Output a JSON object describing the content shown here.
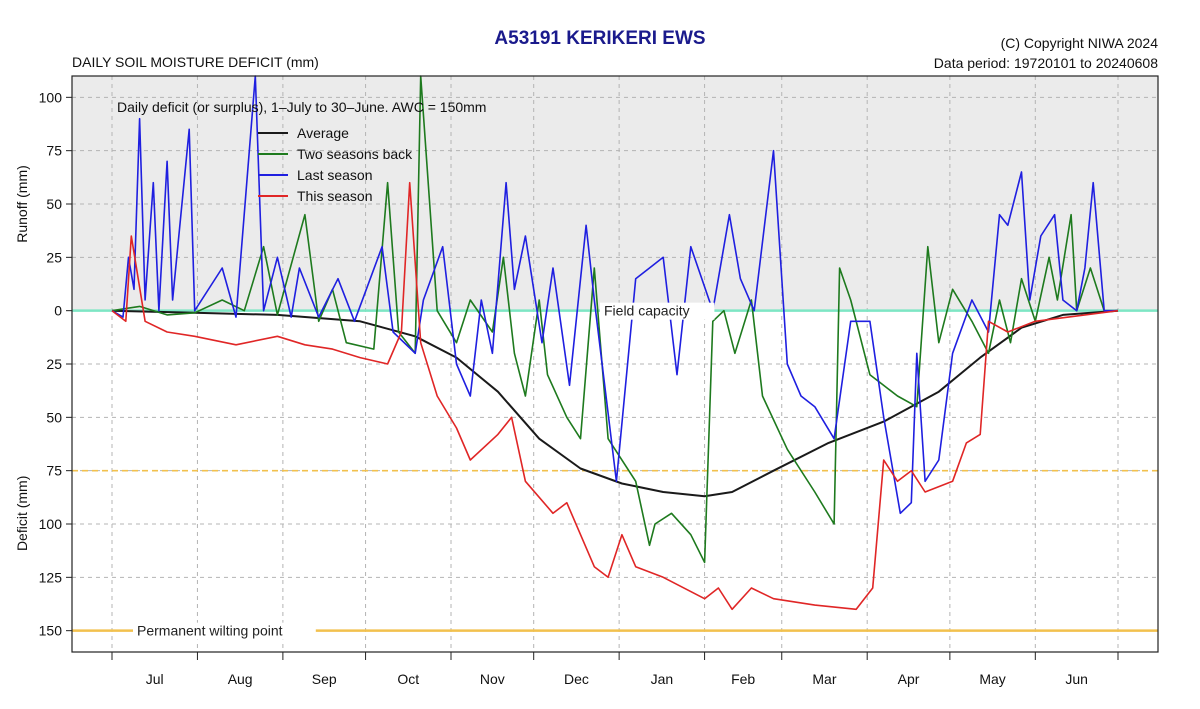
{
  "header": {
    "title": "A53191  KERIKERI EWS",
    "subtitle": "DAILY SOIL MOISTURE DEFICIT (mm)",
    "copyright": "(C) Copyright NIWA  2024",
    "data_period": "Data period:  19720101  to  20240608"
  },
  "colors": {
    "title": "#1a1a8c",
    "runoff_bg": "#ebebeb",
    "grid": "#b4b4b4",
    "field_capacity": "#7ee6c4",
    "threshold": "#f2c14e",
    "average": "#1a1a1a",
    "two_seasons_back": "#1e7a1e",
    "last_season": "#1f1fe0",
    "this_season": "#e02626"
  },
  "chart_data": {
    "type": "line",
    "legend_title": "Daily deficit (or surplus), 1–July to 30–June.  AWC = 150mm",
    "legend_placement": "top-left",
    "xlabel": "",
    "ylabel_top": "Runoff (mm)",
    "ylabel_bottom": "Deficit (mm)",
    "x_unit": "day of season (0 = 1 July)",
    "xlim": [
      0,
      365
    ],
    "ylim": [
      -110,
      160
    ],
    "grid": true,
    "month_ticks": [
      0,
      31,
      62,
      92,
      123,
      153,
      184,
      215,
      243,
      274,
      304,
      335,
      365
    ],
    "month_labels": [
      "Jul",
      "Aug",
      "Sep",
      "Oct",
      "Nov",
      "Dec",
      "Jan",
      "Feb",
      "Mar",
      "Apr",
      "May",
      "Jun"
    ],
    "y_ticks": [
      -100,
      -75,
      -50,
      -25,
      0,
      25,
      50,
      75,
      100,
      125,
      150
    ],
    "y_tick_labels": [
      "100",
      "75",
      "50",
      "25",
      "0",
      "25",
      "50",
      "75",
      "100",
      "125",
      "150"
    ],
    "reference_lines": [
      {
        "label": "Field capacity",
        "y": 0
      },
      {
        "label": "",
        "y": 75
      },
      {
        "label": "Permanent wilting point",
        "y": 150
      }
    ],
    "series": [
      {
        "name": "Average",
        "key": "average",
        "points": [
          [
            0,
            0
          ],
          [
            30,
            1
          ],
          [
            60,
            2
          ],
          [
            90,
            5
          ],
          [
            110,
            12
          ],
          [
            125,
            22
          ],
          [
            140,
            38
          ],
          [
            155,
            60
          ],
          [
            170,
            74
          ],
          [
            185,
            81
          ],
          [
            200,
            85
          ],
          [
            215,
            87
          ],
          [
            225,
            85
          ],
          [
            240,
            75
          ],
          [
            260,
            62
          ],
          [
            280,
            52
          ],
          [
            300,
            38
          ],
          [
            315,
            22
          ],
          [
            330,
            8
          ],
          [
            345,
            2
          ],
          [
            365,
            0
          ]
        ]
      },
      {
        "name": "Two seasons back",
        "key": "two_seasons_back",
        "points": [
          [
            0,
            0
          ],
          [
            10,
            -2
          ],
          [
            20,
            2
          ],
          [
            30,
            1
          ],
          [
            40,
            -5
          ],
          [
            48,
            0
          ],
          [
            55,
            -30
          ],
          [
            60,
            2
          ],
          [
            70,
            -45
          ],
          [
            75,
            5
          ],
          [
            80,
            -10
          ],
          [
            85,
            15
          ],
          [
            95,
            18
          ],
          [
            100,
            -60
          ],
          [
            104,
            10
          ],
          [
            110,
            20
          ],
          [
            112,
            -110
          ],
          [
            118,
            0
          ],
          [
            125,
            15
          ],
          [
            130,
            -5
          ],
          [
            138,
            10
          ],
          [
            142,
            -25
          ],
          [
            146,
            20
          ],
          [
            150,
            40
          ],
          [
            155,
            -5
          ],
          [
            158,
            30
          ],
          [
            165,
            50
          ],
          [
            170,
            60
          ],
          [
            175,
            -20
          ],
          [
            180,
            60
          ],
          [
            190,
            80
          ],
          [
            195,
            110
          ],
          [
            197,
            100
          ],
          [
            203,
            95
          ],
          [
            210,
            105
          ],
          [
            215,
            118
          ],
          [
            218,
            5
          ],
          [
            222,
            0
          ],
          [
            226,
            20
          ],
          [
            232,
            -5
          ],
          [
            236,
            40
          ],
          [
            245,
            65
          ],
          [
            255,
            85
          ],
          [
            262,
            100
          ],
          [
            264,
            -20
          ],
          [
            268,
            -5
          ],
          [
            275,
            30
          ],
          [
            285,
            40
          ],
          [
            292,
            45
          ],
          [
            296,
            -30
          ],
          [
            300,
            15
          ],
          [
            305,
            -10
          ],
          [
            312,
            5
          ],
          [
            318,
            20
          ],
          [
            322,
            -5
          ],
          [
            326,
            15
          ],
          [
            330,
            -15
          ],
          [
            335,
            5
          ],
          [
            340,
            -25
          ],
          [
            343,
            -5
          ],
          [
            348,
            -45
          ],
          [
            350,
            0
          ],
          [
            355,
            -20
          ],
          [
            360,
            0
          ],
          [
            365,
            0
          ]
        ]
      },
      {
        "name": "Last season",
        "key": "last_season",
        "points": [
          [
            0,
            0
          ],
          [
            4,
            3
          ],
          [
            6,
            -25
          ],
          [
            8,
            -10
          ],
          [
            10,
            -90
          ],
          [
            12,
            -5
          ],
          [
            15,
            -60
          ],
          [
            17,
            0
          ],
          [
            20,
            -70
          ],
          [
            22,
            -5
          ],
          [
            28,
            -85
          ],
          [
            30,
            0
          ],
          [
            40,
            -20
          ],
          [
            45,
            3
          ],
          [
            52,
            -110
          ],
          [
            55,
            0
          ],
          [
            60,
            -25
          ],
          [
            65,
            3
          ],
          [
            68,
            -20
          ],
          [
            75,
            3
          ],
          [
            82,
            -15
          ],
          [
            88,
            5
          ],
          [
            98,
            -30
          ],
          [
            102,
            10
          ],
          [
            110,
            20
          ],
          [
            113,
            -5
          ],
          [
            120,
            -30
          ],
          [
            125,
            25
          ],
          [
            130,
            40
          ],
          [
            134,
            -5
          ],
          [
            138,
            20
          ],
          [
            143,
            -60
          ],
          [
            146,
            -10
          ],
          [
            150,
            -35
          ],
          [
            156,
            15
          ],
          [
            160,
            -20
          ],
          [
            166,
            35
          ],
          [
            172,
            -40
          ],
          [
            175,
            -5
          ],
          [
            183,
            80
          ],
          [
            190,
            -15
          ],
          [
            195,
            -20
          ],
          [
            200,
            -25
          ],
          [
            205,
            30
          ],
          [
            210,
            -30
          ],
          [
            218,
            0
          ],
          [
            224,
            -45
          ],
          [
            228,
            -15
          ],
          [
            233,
            0
          ],
          [
            240,
            -75
          ],
          [
            245,
            25
          ],
          [
            250,
            40
          ],
          [
            255,
            45
          ],
          [
            262,
            60
          ],
          [
            268,
            5
          ],
          [
            275,
            5
          ],
          [
            280,
            50
          ],
          [
            286,
            95
          ],
          [
            290,
            90
          ],
          [
            292,
            20
          ],
          [
            295,
            80
          ],
          [
            300,
            70
          ],
          [
            305,
            20
          ],
          [
            312,
            -5
          ],
          [
            318,
            10
          ],
          [
            322,
            -45
          ],
          [
            325,
            -40
          ],
          [
            330,
            -65
          ],
          [
            333,
            -5
          ],
          [
            337,
            -35
          ],
          [
            342,
            -45
          ],
          [
            345,
            -5
          ],
          [
            350,
            0
          ],
          [
            353,
            -20
          ],
          [
            356,
            -60
          ],
          [
            360,
            0
          ],
          [
            365,
            0
          ]
        ]
      },
      {
        "name": "This season",
        "key": "this_season",
        "points": [
          [
            0,
            0
          ],
          [
            5,
            5
          ],
          [
            7,
            -35
          ],
          [
            12,
            5
          ],
          [
            20,
            10
          ],
          [
            30,
            12
          ],
          [
            45,
            16
          ],
          [
            60,
            12
          ],
          [
            70,
            16
          ],
          [
            80,
            18
          ],
          [
            90,
            22
          ],
          [
            100,
            25
          ],
          [
            105,
            10
          ],
          [
            108,
            -60
          ],
          [
            112,
            15
          ],
          [
            118,
            40
          ],
          [
            125,
            55
          ],
          [
            130,
            70
          ],
          [
            140,
            58
          ],
          [
            145,
            50
          ],
          [
            150,
            80
          ],
          [
            160,
            95
          ],
          [
            165,
            90
          ],
          [
            175,
            120
          ],
          [
            180,
            125
          ],
          [
            185,
            105
          ],
          [
            190,
            120
          ],
          [
            200,
            125
          ],
          [
            215,
            135
          ],
          [
            220,
            130
          ],
          [
            225,
            140
          ],
          [
            232,
            130
          ],
          [
            240,
            135
          ],
          [
            255,
            138
          ],
          [
            270,
            140
          ],
          [
            276,
            130
          ],
          [
            280,
            70
          ],
          [
            285,
            80
          ],
          [
            290,
            75
          ],
          [
            295,
            85
          ],
          [
            305,
            80
          ],
          [
            310,
            62
          ],
          [
            315,
            58
          ],
          [
            318,
            5
          ],
          [
            325,
            10
          ],
          [
            335,
            5
          ],
          [
            365,
            0
          ]
        ]
      }
    ]
  }
}
